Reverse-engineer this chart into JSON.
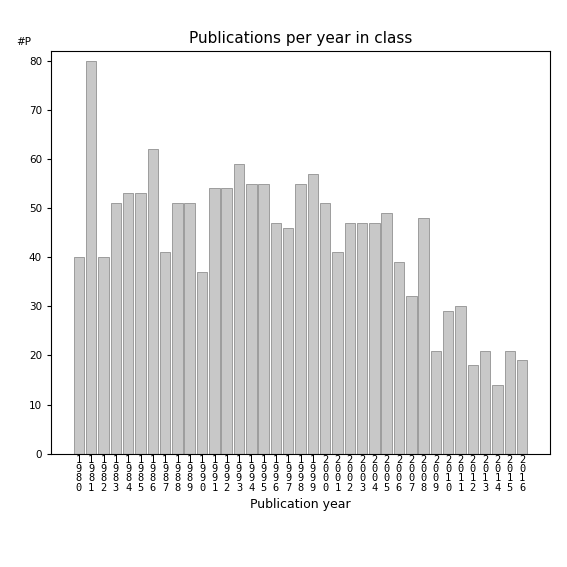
{
  "title": "Publications per year in class",
  "xlabel": "Publication year",
  "ylabel": "#P",
  "years": [
    "1980",
    "1981",
    "1982",
    "1983",
    "1984",
    "1985",
    "1986",
    "1987",
    "1988",
    "1989",
    "1990",
    "1991",
    "1992",
    "1993",
    "1994",
    "1995",
    "1996",
    "1997",
    "1998",
    "1999",
    "2000",
    "2001",
    "2002",
    "2003",
    "2004",
    "2005",
    "2006",
    "2007",
    "2008",
    "2009",
    "2010",
    "2011",
    "2012",
    "2013",
    "2014",
    "2015",
    "2016"
  ],
  "values": [
    40,
    80,
    40,
    51,
    53,
    53,
    62,
    41,
    51,
    51,
    37,
    54,
    54,
    59,
    55,
    55,
    47,
    46,
    55,
    57,
    51,
    41,
    47,
    47,
    47,
    49,
    39,
    32,
    48,
    21,
    29,
    30,
    18,
    21,
    14,
    21,
    19
  ],
  "bar_color": "#c8c8c8",
  "bar_edge_color": "#808080",
  "ylim": [
    0,
    82
  ],
  "yticks": [
    0,
    10,
    20,
    30,
    40,
    50,
    60,
    70,
    80
  ],
  "background_color": "#ffffff",
  "figsize": [
    5.67,
    5.67
  ],
  "dpi": 100,
  "title_fontsize": 11,
  "label_fontsize": 9,
  "tick_fontsize": 7.5
}
